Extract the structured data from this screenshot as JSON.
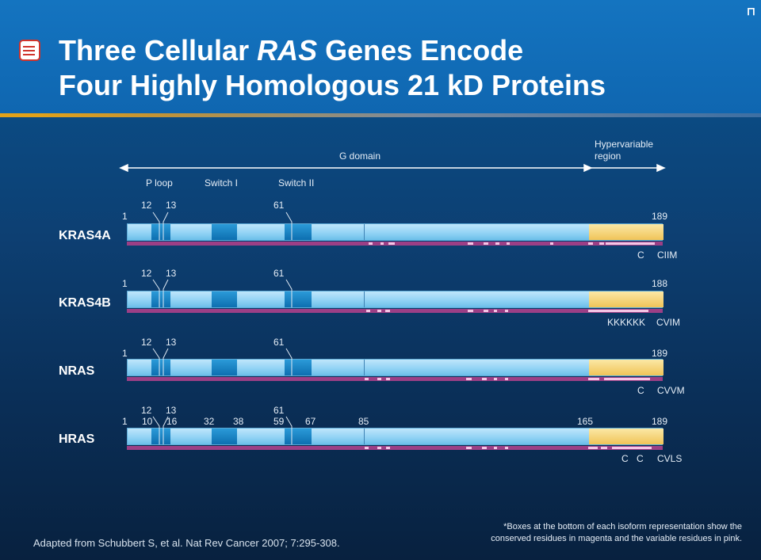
{
  "header": {
    "title_line1_a": "Three Cellular ",
    "title_line1_em": "RAS",
    "title_line1_b": " Genes Encode",
    "title_line2": "Four Highly Homologous 21 kD Proteins",
    "icon": "list-icon",
    "logo_glyph": "ꟷ"
  },
  "domains": {
    "g_domain": "G domain",
    "hvr_line1": "Hypervariable",
    "hvr_line2": "region",
    "p_loop": "P loop",
    "switch1": "Switch I",
    "switch2": "Switch II"
  },
  "isoforms": [
    {
      "name": "KRAS4A",
      "start": "1",
      "end": "189",
      "pos12": "12",
      "pos13": "13",
      "pos61": "61",
      "motif_left": "C",
      "motif_right": "CIIM"
    },
    {
      "name": "KRAS4B",
      "start": "1",
      "end": "188",
      "pos12": "12",
      "pos13": "13",
      "pos61": "61",
      "motif_left": "KKKKKK",
      "motif_right": "CVIM"
    },
    {
      "name": "NRAS",
      "start": "1",
      "end": "189",
      "pos12": "12",
      "pos13": "13",
      "pos61": "61",
      "motif_left": "C",
      "motif_right": "CVVM"
    },
    {
      "name": "HRAS",
      "start": "1",
      "end": "189",
      "pos12": "12",
      "pos13": "13",
      "pos61": "61",
      "motif_left1": "C",
      "motif_left2": "C",
      "motif_right": "CVLS",
      "extra": {
        "p10": "10",
        "p16": "16",
        "p32": "32",
        "p38": "38",
        "p59": "59",
        "p67": "67",
        "p85": "85",
        "p165": "165"
      }
    }
  ],
  "colors": {
    "conserved": "#9c3f86",
    "variable": "#f4c6e6",
    "g_domain_fill": "#93d3f5",
    "hvr_fill": "#f0c458",
    "motif_fill": "#0d6fb0"
  },
  "footnote": {
    "line1": "*Boxes at the bottom of each isoform representation show the",
    "line2": "conserved residues in magenta and the variable residues in pink."
  },
  "source": "Adapted from Schubbert S, et al. Nat Rev Cancer 2007; 7:295-308."
}
